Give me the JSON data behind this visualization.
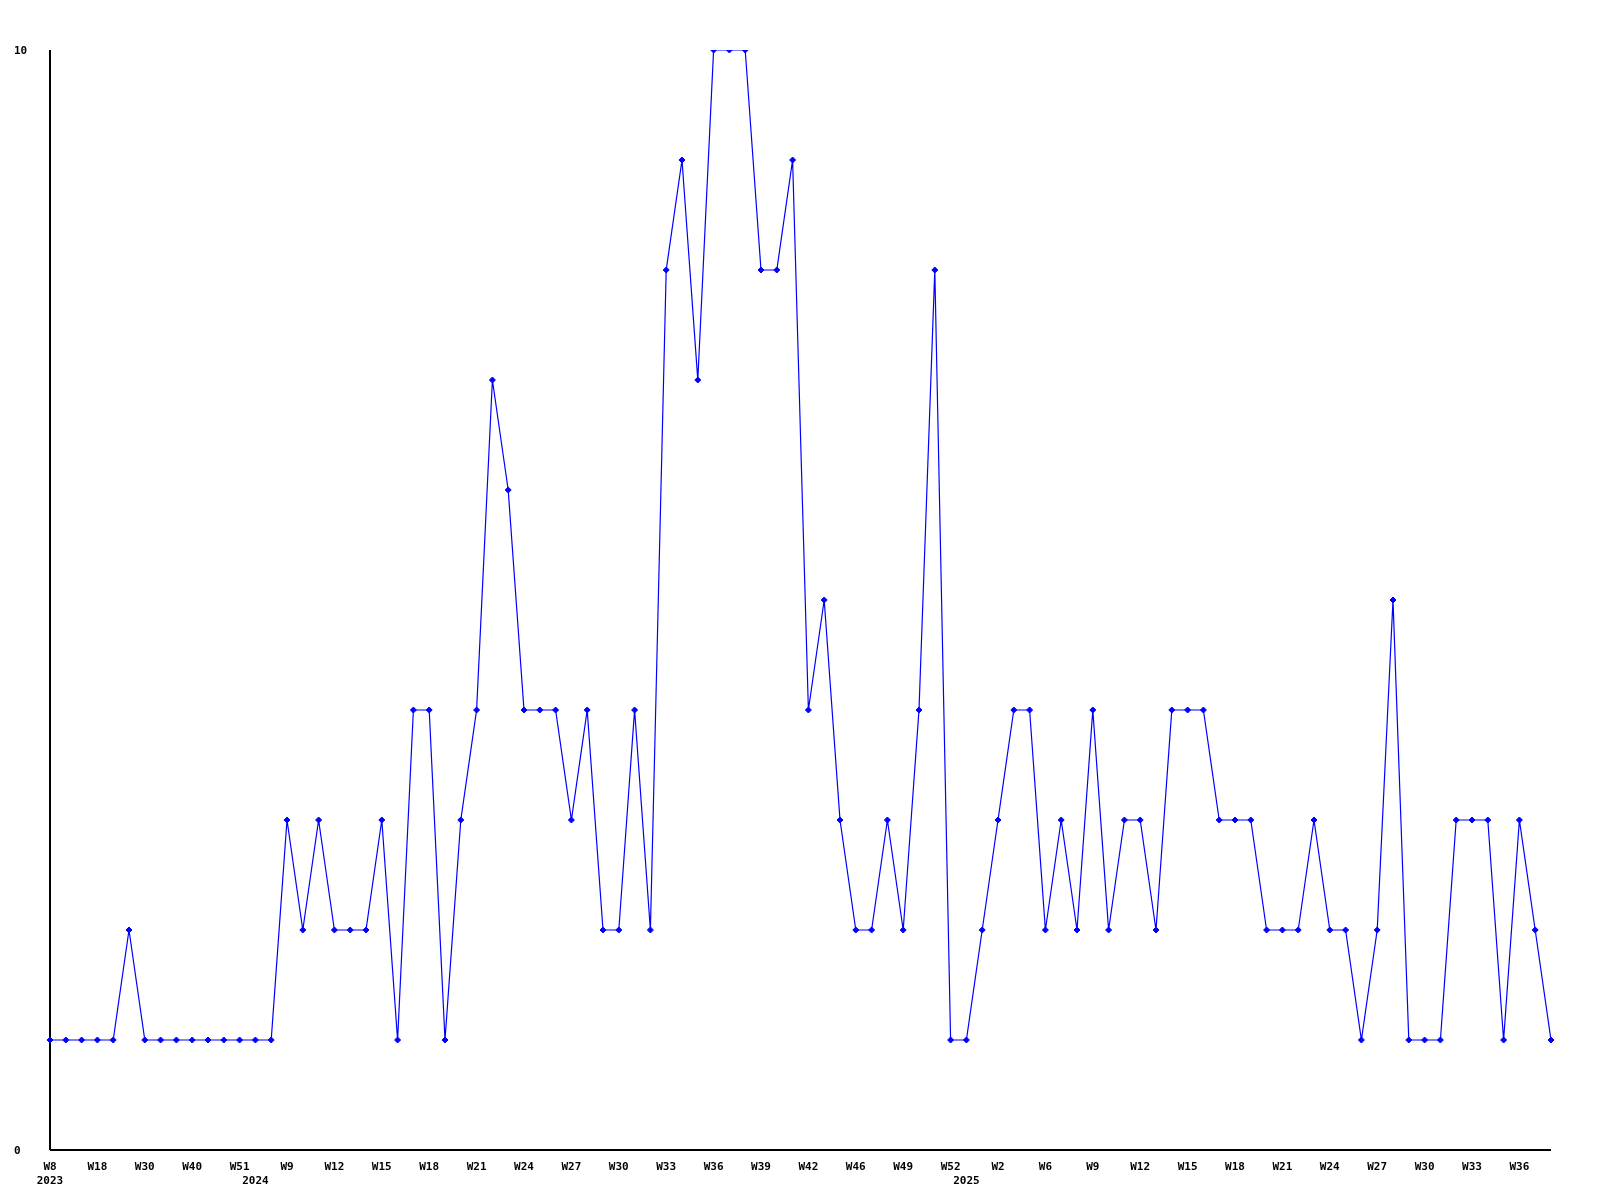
{
  "chart_data": {
    "type": "line",
    "categories": [
      "W8\n2023",
      null,
      null,
      "W18",
      null,
      null,
      "W30",
      null,
      null,
      "W40",
      null,
      null,
      "W51",
      "\n2024",
      null,
      "W9",
      null,
      null,
      "W12",
      null,
      null,
      "W15",
      null,
      null,
      "W18",
      null,
      null,
      "W21",
      null,
      null,
      "W24",
      null,
      null,
      "W27",
      null,
      null,
      "W30",
      null,
      null,
      "W33",
      null,
      null,
      "W36",
      null,
      null,
      "W39",
      null,
      null,
      "W42",
      null,
      null,
      "W46",
      null,
      null,
      "W49",
      null,
      null,
      "W52",
      "\n2025",
      null,
      "W2",
      null,
      null,
      "W6",
      null,
      null,
      "W9",
      null,
      null,
      "W12",
      null,
      null,
      "W15",
      null,
      null,
      "W18",
      null,
      null,
      "W21",
      null,
      null,
      "W24",
      null,
      null,
      "W27",
      null,
      null,
      "W30",
      null,
      null,
      "W33",
      null,
      null,
      "W36",
      null,
      null
    ],
    "series": [
      {
        "color": "#0000ff",
        "values": [
          1,
          1,
          1,
          1,
          1,
          2,
          1,
          1,
          1,
          1,
          1,
          1,
          1,
          1,
          1,
          3,
          2,
          3,
          2,
          2,
          2,
          3,
          1,
          4,
          4,
          1,
          3,
          4,
          7,
          6,
          4,
          4,
          4,
          3,
          4,
          2,
          2,
          4,
          2,
          8,
          9,
          7,
          10,
          10,
          10,
          8,
          8,
          9,
          4,
          5,
          3,
          2,
          2,
          3,
          2,
          4,
          8,
          1,
          1,
          2,
          3,
          4,
          4,
          2,
          3,
          2,
          4,
          2,
          3,
          3,
          2,
          4,
          4,
          4,
          3,
          3,
          3,
          2,
          2,
          2,
          3,
          2,
          2,
          1,
          2,
          5,
          1,
          1,
          1,
          3,
          3,
          3,
          1,
          3,
          2,
          1
        ]
      }
    ],
    "ylim": [
      0,
      10
    ],
    "yticks": [
      0,
      10
    ],
    "marker": "diamond",
    "line_style": "solid",
    "legend": false
  }
}
